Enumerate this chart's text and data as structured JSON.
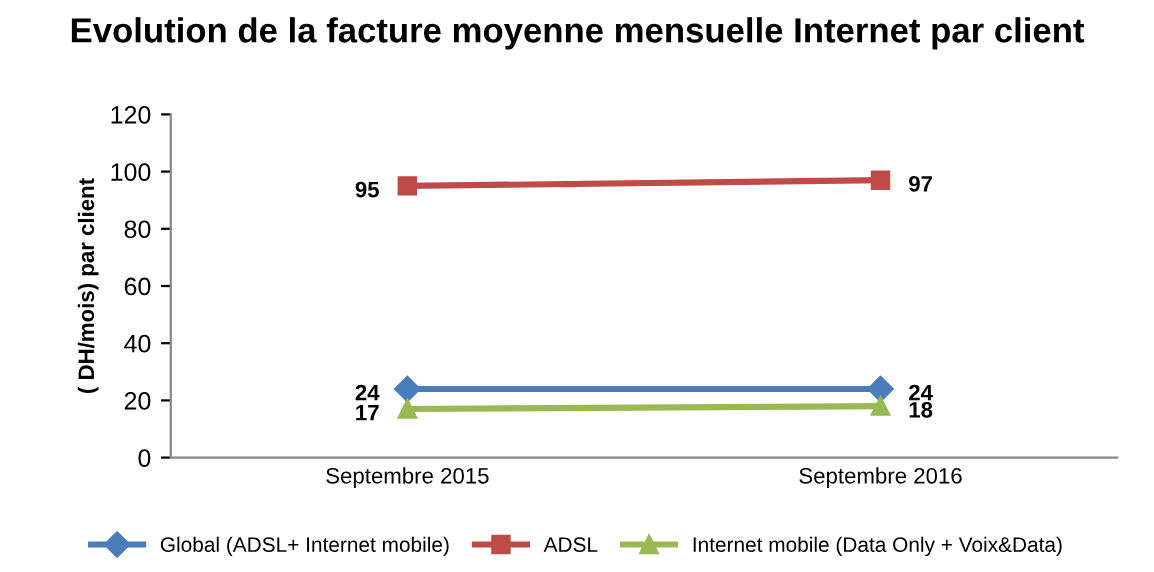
{
  "chart_data": {
    "type": "line",
    "title": "Evolution de la facture moyenne mensuelle Internet par client",
    "ylabel": "( DH/mois) par client",
    "categories": [
      "Septembre 2015",
      "Septembre 2016"
    ],
    "series": [
      {
        "name": "Global (ADSL+ Internet mobile)",
        "color": "#4a7ebb",
        "values": [
          24,
          24
        ],
        "marker": "diamond"
      },
      {
        "name": "ADSL",
        "color": "#be4b48",
        "values": [
          95,
          97
        ],
        "marker": "square"
      },
      {
        "name": "Internet mobile (Data Only + Voix&Data)",
        "color": "#98b954",
        "values": [
          17,
          18
        ],
        "marker": "triangle"
      }
    ],
    "ylim": [
      0,
      120
    ],
    "yticks": [
      0,
      20,
      40,
      60,
      80,
      100,
      120
    ],
    "grid": false,
    "legend": "bottom",
    "data_labels": true
  }
}
